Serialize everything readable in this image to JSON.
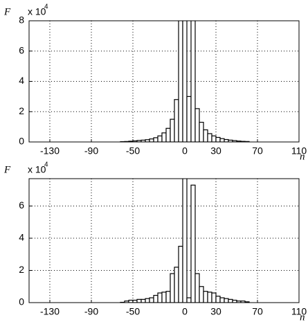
{
  "chart_data": [
    {
      "type": "histogram",
      "y_label": "F",
      "x_label": "n",
      "y_multiplier": "x 10",
      "y_multiplier_exponent": "4",
      "bins": [
        -62,
        -58,
        -54,
        -50,
        -46,
        -42,
        -38,
        -34,
        -30,
        -26,
        -22,
        -18,
        -14,
        -10,
        -6,
        -2,
        2,
        6,
        10,
        14,
        18,
        22,
        26,
        30,
        34,
        38,
        42,
        46,
        50,
        54,
        58,
        62
      ],
      "values": [
        0.02,
        0.03,
        0.05,
        0.07,
        0.1,
        0.12,
        0.15,
        0.2,
        0.28,
        0.4,
        0.6,
        0.9,
        1.5,
        2.8,
        8.5,
        9,
        3,
        8.5,
        2.2,
        1.3,
        0.8,
        0.55,
        0.4,
        0.3,
        0.22,
        0.16,
        0.12,
        0.09,
        0.06,
        0.04,
        0.03
      ],
      "color": "#000000",
      "xlim": [
        -150,
        110
      ],
      "xticks": [
        -130,
        -90,
        -50,
        0,
        30,
        70,
        110
      ],
      "ylim": [
        0,
        8
      ],
      "yticks": [
        0,
        2,
        4,
        6,
        8
      ],
      "grid": true
    },
    {
      "type": "histogram",
      "y_label": "F",
      "x_label": "n",
      "y_multiplier": "x 10",
      "y_multiplier_exponent": "4",
      "bins": [
        -62,
        -58,
        -54,
        -50,
        -46,
        -42,
        -38,
        -34,
        -30,
        -26,
        -22,
        -18,
        -14,
        -10,
        -6,
        -2,
        2,
        6,
        10,
        14,
        18,
        22,
        26,
        30,
        34,
        38,
        42,
        46,
        50,
        54,
        58,
        62
      ],
      "values": [
        0.02,
        0.1,
        0.15,
        0.15,
        0.2,
        0.2,
        0.25,
        0.3,
        0.45,
        0.6,
        0.65,
        0.7,
        1.8,
        2.2,
        3.5,
        8,
        0.3,
        7.3,
        1.8,
        1.0,
        0.7,
        0.65,
        0.6,
        0.4,
        0.3,
        0.25,
        0.2,
        0.15,
        0.1,
        0.1,
        0.05
      ],
      "color": "#000000",
      "xlim": [
        -150,
        110
      ],
      "xticks": [
        -130,
        -90,
        -50,
        0,
        30,
        70,
        110
      ],
      "ylim": [
        0,
        7.7
      ],
      "yticks": [
        0,
        2,
        4,
        6
      ],
      "grid": true
    }
  ]
}
